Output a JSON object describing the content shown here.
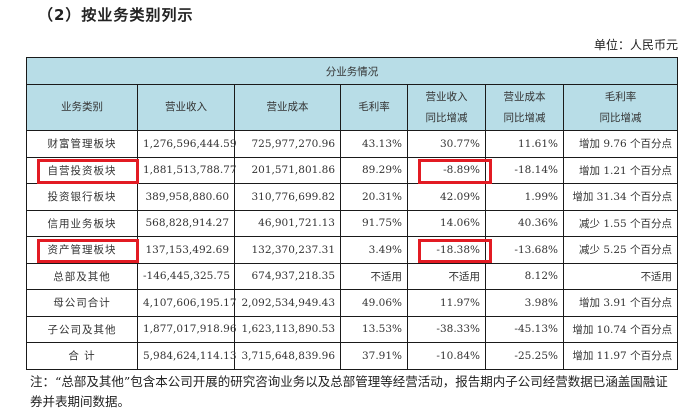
{
  "section_title": "（2）按业务类别列示",
  "unit": "单位：人民币元",
  "table": {
    "group_header": "分业务情况",
    "columns": [
      {
        "line1": "业务类别",
        "line2": ""
      },
      {
        "line1": "营业收入",
        "line2": ""
      },
      {
        "line1": "营业成本",
        "line2": ""
      },
      {
        "line1": "毛利率",
        "line2": ""
      },
      {
        "line1": "营业收入",
        "line2": "同比增减"
      },
      {
        "line1": "营业成本",
        "line2": "同比增减"
      },
      {
        "line1": "毛利率",
        "line2": "同比增减"
      }
    ],
    "rows": [
      {
        "category": "财富管理板块",
        "revenue": "1,276,596,444.59",
        "cost": "725,977,270.96",
        "margin": "43.13%",
        "revenue_yoy": "30.77%",
        "cost_yoy": "11.61%",
        "margin_yoy": "增加 9.76 个百分点",
        "highlight_category": false,
        "highlight_revenue_yoy": false
      },
      {
        "category": "自营投资板块",
        "revenue": "1,881,513,788.77",
        "cost": "201,571,801.86",
        "margin": "89.29%",
        "revenue_yoy": "-8.89%",
        "cost_yoy": "-18.14%",
        "margin_yoy": "增加 1.21 个百分点",
        "highlight_category": true,
        "highlight_revenue_yoy": true
      },
      {
        "category": "投资银行板块",
        "revenue": "389,958,880.60",
        "cost": "310,776,699.82",
        "margin": "20.31%",
        "revenue_yoy": "42.09%",
        "cost_yoy": "1.99%",
        "margin_yoy": "增加 31.34 个百分点",
        "highlight_category": false,
        "highlight_revenue_yoy": false
      },
      {
        "category": "信用业务板块",
        "revenue": "568,828,914.27",
        "cost": "46,901,721.13",
        "margin": "91.75%",
        "revenue_yoy": "14.06%",
        "cost_yoy": "40.36%",
        "margin_yoy": "减少 1.55 个百分点",
        "highlight_category": false,
        "highlight_revenue_yoy": false
      },
      {
        "category": "资产管理板块",
        "revenue": "137,153,492.69",
        "cost": "132,370,237.31",
        "margin": "3.49%",
        "revenue_yoy": "-18.38%",
        "cost_yoy": "-13.68%",
        "margin_yoy": "减少 5.25 个百分点",
        "highlight_category": true,
        "highlight_revenue_yoy": true
      },
      {
        "category": "总部及其他",
        "revenue": "-146,445,325.75",
        "cost": "674,937,218.35",
        "margin": "不适用",
        "revenue_yoy": "不适用",
        "cost_yoy": "8.12%",
        "margin_yoy": "不适用",
        "highlight_category": false,
        "highlight_revenue_yoy": false
      },
      {
        "category": "母公司合计",
        "revenue": "4,107,606,195.17",
        "cost": "2,092,534,949.43",
        "margin": "49.06%",
        "revenue_yoy": "11.97%",
        "cost_yoy": "3.98%",
        "margin_yoy": "增加 3.91 个百分点",
        "highlight_category": false,
        "highlight_revenue_yoy": false
      },
      {
        "category": "子公司及其他",
        "revenue": "1,877,017,918.96",
        "cost": "1,623,113,890.53",
        "margin": "13.53%",
        "revenue_yoy": "-38.33%",
        "cost_yoy": "-45.13%",
        "margin_yoy": "增加 10.74 个百分点",
        "highlight_category": false,
        "highlight_revenue_yoy": false
      },
      {
        "category": "合 计",
        "revenue": "5,984,624,114.13",
        "cost": "3,715,648,839.96",
        "margin": "37.91%",
        "revenue_yoy": "-10.84%",
        "cost_yoy": "-25.25%",
        "margin_yoy": "增加 11.97 个百分点",
        "highlight_category": false,
        "highlight_revenue_yoy": false
      }
    ]
  },
  "note": "注：“总部及其他”包含本公司开展的研究咨询业务以及总部管理等经营活动，报告期内子公司经营数据已涵盖国融证券并表期间数据。",
  "colors": {
    "header_bg": "#b8dde7",
    "highlight_border": "#e21b23",
    "border": "#1a1a1a"
  }
}
